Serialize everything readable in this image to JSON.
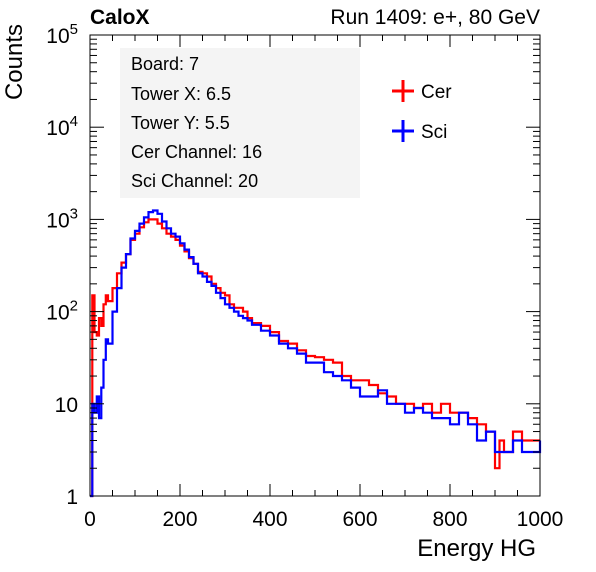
{
  "header": {
    "brand": "CaloX",
    "run": "Run 1409: e+, 80 GeV"
  },
  "info_box": [
    "Board: 7",
    "Tower X: 6.5",
    "Tower Y: 5.5",
    "Cer Channel: 16",
    "Sci Channel: 20"
  ],
  "colors": {
    "cer": "#ff0000",
    "sci": "#0000ff"
  },
  "chart_data": {
    "type": "line",
    "xlabel": "Energy HG",
    "ylabel": "Counts",
    "xlim": [
      0,
      1000
    ],
    "ylim": [
      1,
      100000
    ],
    "ylog": true,
    "xticks": [
      0,
      200,
      400,
      600,
      800,
      1000
    ],
    "yticks": [
      {
        "value": 1,
        "label": "1"
      },
      {
        "value": 10,
        "label": "10"
      },
      {
        "value": 100,
        "label": "10",
        "exp": "2"
      },
      {
        "value": 1000,
        "label": "10",
        "exp": "3"
      },
      {
        "value": 10000,
        "label": "10",
        "exp": "4"
      },
      {
        "value": 100000,
        "label": "10",
        "exp": "5"
      }
    ],
    "legend_position": "top-right",
    "series": [
      {
        "name": "Cer",
        "color": "#ff0000",
        "x": [
          0,
          5,
          10,
          15,
          20,
          25,
          30,
          35,
          40,
          50,
          60,
          70,
          80,
          90,
          100,
          110,
          120,
          130,
          140,
          150,
          160,
          170,
          180,
          190,
          200,
          210,
          220,
          230,
          240,
          250,
          260,
          270,
          280,
          290,
          300,
          310,
          320,
          330,
          340,
          350,
          360,
          380,
          400,
          420,
          440,
          460,
          480,
          500,
          520,
          540,
          560,
          580,
          600,
          620,
          640,
          660,
          680,
          700,
          720,
          740,
          760,
          780,
          800,
          820,
          840,
          860,
          880,
          900,
          910,
          920,
          940,
          960,
          980,
          1000
        ],
        "values": [
          1,
          150,
          60,
          55,
          85,
          70,
          120,
          150,
          130,
          180,
          260,
          340,
          420,
          600,
          700,
          820,
          930,
          1000,
          1000,
          900,
          800,
          700,
          650,
          600,
          520,
          450,
          380,
          330,
          270,
          260,
          240,
          200,
          180,
          160,
          150,
          120,
          110,
          110,
          100,
          85,
          75,
          70,
          60,
          48,
          45,
          38,
          33,
          32,
          30,
          28,
          20,
          18,
          18,
          16,
          13,
          12,
          10,
          10,
          9,
          10,
          8,
          10,
          8,
          8,
          7,
          6,
          5,
          2,
          4,
          3,
          5,
          4,
          4,
          4
        ]
      },
      {
        "name": "Sci",
        "color": "#0000ff",
        "x": [
          0,
          5,
          10,
          15,
          20,
          25,
          30,
          35,
          40,
          50,
          60,
          70,
          80,
          90,
          100,
          110,
          120,
          130,
          140,
          150,
          160,
          170,
          180,
          190,
          200,
          210,
          220,
          230,
          240,
          250,
          260,
          270,
          280,
          290,
          300,
          310,
          320,
          330,
          340,
          350,
          360,
          380,
          400,
          420,
          440,
          460,
          480,
          500,
          520,
          540,
          560,
          580,
          600,
          620,
          640,
          660,
          680,
          700,
          720,
          740,
          760,
          780,
          800,
          820,
          840,
          860,
          880,
          900,
          910,
          920,
          940,
          960,
          980,
          1000
        ],
        "values": [
          1,
          10,
          8,
          12,
          7,
          15,
          30,
          50,
          45,
          100,
          180,
          300,
          420,
          620,
          750,
          900,
          1050,
          1200,
          1250,
          1150,
          950,
          800,
          700,
          650,
          550,
          470,
          390,
          330,
          260,
          240,
          210,
          190,
          160,
          140,
          120,
          110,
          100,
          90,
          85,
          80,
          72,
          62,
          55,
          45,
          40,
          35,
          28,
          28,
          22,
          20,
          18,
          15,
          12,
          12,
          14,
          10,
          10,
          8,
          9,
          8,
          7,
          7,
          6,
          8,
          6,
          4,
          5,
          3,
          3,
          3,
          4,
          3,
          3,
          4
        ]
      }
    ]
  }
}
